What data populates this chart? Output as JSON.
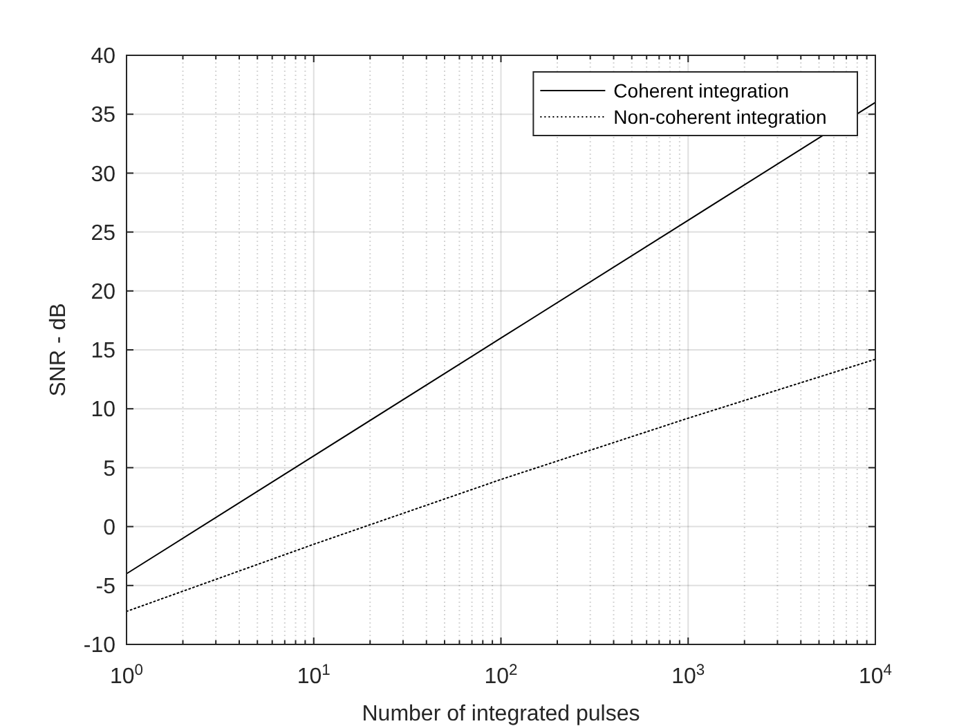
{
  "chart_data": {
    "type": "line",
    "xlabel": "Number of integrated pulses",
    "ylabel": "SNR - dB",
    "log": "x",
    "x": [
      1,
      10,
      100,
      1000,
      10000
    ],
    "series": [
      {
        "name": "Coherent integration",
        "color": "#000000",
        "values": [
          -4,
          6,
          16,
          26,
          36
        ]
      },
      {
        "name": "Non-coherent integration",
        "color": "#000000",
        "line_style": "dotted",
        "values": [
          -7.2,
          -1.5,
          4,
          9.2,
          14.2
        ]
      }
    ],
    "xlim": [
      1,
      10000
    ],
    "ylim": [
      -10,
      40
    ],
    "xticks": [
      {
        "value": 1,
        "label": "10$^{0}$"
      },
      {
        "value": 2,
        "label": null
      },
      {
        "value": 3,
        "label": null
      },
      {
        "value": 4,
        "label": null
      },
      {
        "value": 5,
        "label": null
      },
      {
        "value": 6,
        "label": null
      },
      {
        "value": 7,
        "label": null
      },
      {
        "value": 8,
        "label": null
      },
      {
        "value": 9,
        "label": null
      },
      {
        "value": 10,
        "label": "10$^{1}$"
      },
      {
        "value": 20,
        "label": null
      },
      {
        "value": 30,
        "label": null
      },
      {
        "value": 40,
        "label": null
      },
      {
        "value": 50,
        "label": null
      },
      {
        "value": 60,
        "label": null
      },
      {
        "value": 70,
        "label": null
      },
      {
        "value": 80,
        "label": null
      },
      {
        "value": 90,
        "label": null
      },
      {
        "value": 100,
        "label": "10$^{2}$"
      },
      {
        "value": 200,
        "label": null
      },
      {
        "value": 300,
        "label": null
      },
      {
        "value": 400,
        "label": null
      },
      {
        "value": 500,
        "label": null
      },
      {
        "value": 600,
        "label": null
      },
      {
        "value": 700,
        "label": null
      },
      {
        "value": 800,
        "label": null
      },
      {
        "value": 900,
        "label": null
      },
      {
        "value": 1000,
        "label": "10$^{3}$"
      },
      {
        "value": 2000,
        "label": null
      },
      {
        "value": 3000,
        "label": null
      },
      {
        "value": 4000,
        "label": null
      },
      {
        "value": 5000,
        "label": null
      },
      {
        "value": 6000,
        "label": null
      },
      {
        "value": 7000,
        "label": null
      },
      {
        "value": 8000,
        "label": null
      },
      {
        "value": 9000,
        "label": null
      },
      {
        "value": 10000,
        "label": "10$^{4}$"
      }
    ],
    "yticks": [
      -10,
      -5,
      0,
      5,
      10,
      15,
      20,
      25,
      30,
      35,
      40
    ],
    "grid": true,
    "legend": "top right",
    "line_style": "solid"
  }
}
